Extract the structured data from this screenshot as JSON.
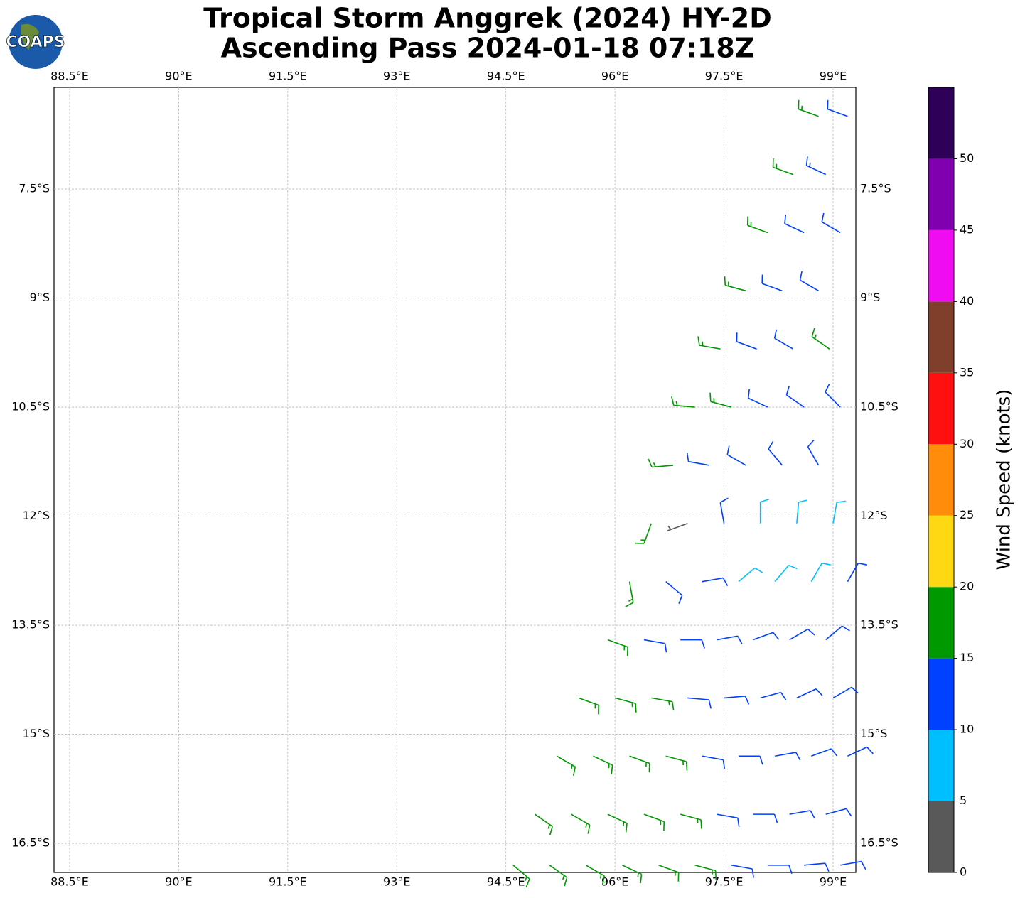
{
  "title": [
    "Tropical Storm Anggrek (2024) HY-2D",
    "Ascending Pass 2024-01-18 07:18Z"
  ],
  "logo": "COAPS",
  "map": {
    "xlim": [
      88.285,
      99.313
    ],
    "ylim": [
      -16.9,
      -6.102
    ],
    "xticks": [
      {
        "value": 88.5,
        "label": "88.5°E"
      },
      {
        "value": 90,
        "label": "90°E"
      },
      {
        "value": 91.5,
        "label": "91.5°E"
      },
      {
        "value": 93,
        "label": "93°E"
      },
      {
        "value": 94.5,
        "label": "94.5°E"
      },
      {
        "value": 96,
        "label": "96°E"
      },
      {
        "value": 97.5,
        "label": "97.5°E"
      },
      {
        "value": 99,
        "label": "99°E"
      }
    ],
    "yticks": [
      {
        "value": -7.5,
        "label": "7.5°S"
      },
      {
        "value": -9,
        "label": "9°S"
      },
      {
        "value": -10.5,
        "label": "10.5°S"
      },
      {
        "value": -12,
        "label": "12°S"
      },
      {
        "value": -13.5,
        "label": "13.5°S"
      },
      {
        "value": -15,
        "label": "15°S"
      },
      {
        "value": -16.5,
        "label": "16.5°S"
      }
    ],
    "grid": true
  },
  "wind": {
    "barbs": [
      [
        98.8,
        -6.5,
        17,
        290
      ],
      [
        99.2,
        -6.5,
        12,
        290
      ],
      [
        98.45,
        -7.3,
        17,
        290
      ],
      [
        98.9,
        -7.3,
        13,
        295
      ],
      [
        98.1,
        -8.1,
        17,
        290
      ],
      [
        98.6,
        -8.1,
        12,
        295
      ],
      [
        99.1,
        -8.1,
        12,
        300
      ],
      [
        97.8,
        -8.9,
        17,
        285
      ],
      [
        98.3,
        -8.9,
        12,
        290
      ],
      [
        98.8,
        -8.9,
        12,
        300
      ],
      [
        97.45,
        -9.7,
        17,
        280
      ],
      [
        97.95,
        -9.7,
        12,
        290
      ],
      [
        98.45,
        -9.7,
        12,
        300
      ],
      [
        98.95,
        -9.7,
        17,
        305
      ],
      [
        97.1,
        -10.5,
        17,
        275
      ],
      [
        97.6,
        -10.5,
        16,
        285
      ],
      [
        98.1,
        -10.5,
        12,
        295
      ],
      [
        98.6,
        -10.5,
        12,
        305
      ],
      [
        99.1,
        -10.5,
        12,
        315
      ],
      [
        96.8,
        -11.3,
        17,
        265
      ],
      [
        97.3,
        -11.3,
        12,
        280
      ],
      [
        97.8,
        -11.3,
        12,
        300
      ],
      [
        98.3,
        -11.3,
        12,
        320
      ],
      [
        98.8,
        -11.3,
        11,
        330
      ],
      [
        96.5,
        -12.1,
        17,
        200
      ],
      [
        97.0,
        -12.1,
        4,
        250
      ],
      [
        97.5,
        -12.1,
        12,
        350
      ],
      [
        98.0,
        -12.1,
        8,
        0
      ],
      [
        98.5,
        -12.1,
        8,
        5
      ],
      [
        99.0,
        -12.1,
        8,
        10
      ],
      [
        96.2,
        -12.9,
        17,
        170
      ],
      [
        96.7,
        -12.9,
        12,
        130
      ],
      [
        97.2,
        -12.9,
        12,
        80
      ],
      [
        97.7,
        -12.9,
        8,
        50
      ],
      [
        98.2,
        -12.9,
        8,
        40
      ],
      [
        98.7,
        -12.9,
        8,
        30
      ],
      [
        99.2,
        -12.9,
        12,
        30
      ],
      [
        95.9,
        -13.7,
        17,
        110
      ],
      [
        96.4,
        -13.7,
        12,
        100
      ],
      [
        96.9,
        -13.7,
        12,
        90
      ],
      [
        97.4,
        -13.7,
        12,
        80
      ],
      [
        97.9,
        -13.7,
        12,
        70
      ],
      [
        98.4,
        -13.7,
        12,
        60
      ],
      [
        98.9,
        -13.7,
        12,
        50
      ],
      [
        95.5,
        -14.5,
        17,
        110
      ],
      [
        96.0,
        -14.5,
        17,
        105
      ],
      [
        96.5,
        -14.5,
        17,
        100
      ],
      [
        97.0,
        -14.5,
        12,
        95
      ],
      [
        97.5,
        -14.5,
        12,
        85
      ],
      [
        98.0,
        -14.5,
        12,
        75
      ],
      [
        98.5,
        -14.5,
        12,
        65
      ],
      [
        99.0,
        -14.5,
        12,
        60
      ],
      [
        95.2,
        -15.3,
        17,
        120
      ],
      [
        95.7,
        -15.3,
        17,
        115
      ],
      [
        96.2,
        -15.3,
        17,
        110
      ],
      [
        96.7,
        -15.3,
        17,
        105
      ],
      [
        97.2,
        -15.3,
        12,
        100
      ],
      [
        97.7,
        -15.3,
        12,
        90
      ],
      [
        98.2,
        -15.3,
        12,
        80
      ],
      [
        98.7,
        -15.3,
        12,
        70
      ],
      [
        99.2,
        -15.3,
        12,
        65
      ],
      [
        94.9,
        -16.1,
        17,
        125
      ],
      [
        95.4,
        -16.1,
        17,
        120
      ],
      [
        95.9,
        -16.1,
        17,
        115
      ],
      [
        96.4,
        -16.1,
        17,
        110
      ],
      [
        96.9,
        -16.1,
        17,
        105
      ],
      [
        97.4,
        -16.1,
        12,
        100
      ],
      [
        97.9,
        -16.1,
        12,
        90
      ],
      [
        98.4,
        -16.1,
        12,
        80
      ],
      [
        98.9,
        -16.1,
        12,
        75
      ],
      [
        94.6,
        -16.8,
        17,
        130
      ],
      [
        95.1,
        -16.8,
        17,
        125
      ],
      [
        95.6,
        -16.8,
        17,
        120
      ],
      [
        96.1,
        -16.8,
        17,
        115
      ],
      [
        96.6,
        -16.8,
        17,
        110
      ],
      [
        97.1,
        -16.8,
        17,
        105
      ],
      [
        97.6,
        -16.8,
        12,
        100
      ],
      [
        98.1,
        -16.8,
        12,
        90
      ],
      [
        98.6,
        -16.8,
        12,
        85
      ],
      [
        99.1,
        -16.8,
        12,
        80
      ]
    ]
  },
  "colorbar": {
    "label": "Wind Speed (knots)",
    "bounds": [
      0,
      5,
      10,
      15,
      20,
      25,
      30,
      35,
      40,
      45,
      50,
      55
    ],
    "colors": [
      "#595959",
      "#00bfff",
      "#0040ff",
      "#009900",
      "#ffd814",
      "#ff8c0a",
      "#ff1010",
      "#7f3f2a",
      "#f00cf0",
      "#8000b0",
      "#2e0058"
    ],
    "ticks": [
      0,
      5,
      10,
      15,
      20,
      25,
      30,
      35,
      40,
      45,
      50
    ]
  }
}
